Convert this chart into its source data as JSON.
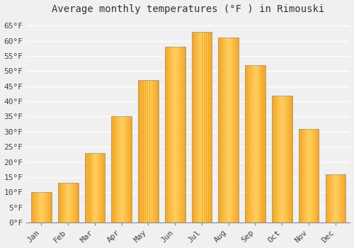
{
  "title": "Average monthly temperatures (°F ) in Rimouski",
  "months": [
    "Jan",
    "Feb",
    "Mar",
    "Apr",
    "May",
    "Jun",
    "Jul",
    "Aug",
    "Sep",
    "Oct",
    "Nov",
    "Dec"
  ],
  "values": [
    10,
    13,
    23,
    35,
    47,
    58,
    63,
    61,
    52,
    42,
    31,
    16
  ],
  "bar_color_outer": "#F5A623",
  "bar_color_inner": "#FFD060",
  "bar_edge_color": "#999999",
  "ylim": [
    0,
    67
  ],
  "yticks": [
    0,
    5,
    10,
    15,
    20,
    25,
    30,
    35,
    40,
    45,
    50,
    55,
    60,
    65
  ],
  "ytick_labels": [
    "0°F",
    "5°F",
    "10°F",
    "15°F",
    "20°F",
    "25°F",
    "30°F",
    "35°F",
    "40°F",
    "45°F",
    "50°F",
    "55°F",
    "60°F",
    "65°F"
  ],
  "bg_color": "#f0f0f0",
  "grid_color": "#ffffff",
  "title_fontsize": 10,
  "tick_fontsize": 8,
  "bar_width": 0.75
}
